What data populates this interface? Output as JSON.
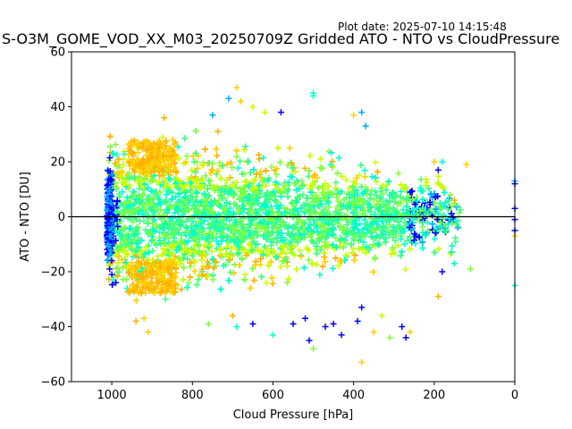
{
  "header": {
    "plot_date": "Plot date: 2025-07-10 14:15:48",
    "title": "S-O3M_GOME_VOD_XX_M03_20250709Z Gridded ATO - NTO vs CloudPressure"
  },
  "chart_data": {
    "type": "scatter",
    "marker": "+",
    "xlabel": "Cloud Pressure [hPa]",
    "ylabel": "ATO - NTO [DU]",
    "xlim": [
      1100,
      0
    ],
    "ylim": [
      -60,
      60
    ],
    "x_ticks": [
      1000,
      800,
      600,
      400,
      200,
      0
    ],
    "x_tick_labels": [
      "1000",
      "800",
      "600",
      "400",
      "200",
      "0"
    ],
    "y_ticks": [
      -60,
      -40,
      -20,
      0,
      20,
      40,
      60
    ],
    "y_tick_labels": [
      "−60",
      "−40",
      "−20",
      "0",
      "20",
      "40",
      "60"
    ],
    "reference_line_y": 0,
    "grid": false,
    "density_band": {
      "x_range": [
        1010,
        130
      ],
      "center_spread_du": 18,
      "colors": [
        "#00ffcc",
        "#40ff80",
        "#80ff40",
        "#c8ff00",
        "#ffd000",
        "#ffb000",
        "#0000ff",
        "#00aaff"
      ]
    },
    "outliers": [
      {
        "x": 690,
        "y": 47,
        "color": "#ffd000"
      },
      {
        "x": 710,
        "y": 43,
        "color": "#00aaff"
      },
      {
        "x": 680,
        "y": 42,
        "color": "#ffd000"
      },
      {
        "x": 500,
        "y": 45,
        "color": "#00ffcc"
      },
      {
        "x": 500,
        "y": 44,
        "color": "#00ffcc"
      },
      {
        "x": 650,
        "y": 40,
        "color": "#c8ff00"
      },
      {
        "x": 620,
        "y": 38,
        "color": "#c8ff00"
      },
      {
        "x": 580,
        "y": 38,
        "color": "#0000ff"
      },
      {
        "x": 400,
        "y": 37,
        "color": "#ffd000"
      },
      {
        "x": 370,
        "y": 33,
        "color": "#00aaff"
      },
      {
        "x": 200,
        "y": 20,
        "color": "#ffd000"
      },
      {
        "x": 190,
        "y": 17,
        "color": "#0000ff"
      },
      {
        "x": 180,
        "y": 20,
        "color": "#00ffcc"
      },
      {
        "x": 120,
        "y": 19,
        "color": "#ffd000"
      },
      {
        "x": 160,
        "y": 8,
        "color": "#80ff40"
      },
      {
        "x": 150,
        "y": 6,
        "color": "#ffb000"
      },
      {
        "x": 0,
        "y": 13,
        "color": "#00aaff"
      },
      {
        "x": 0,
        "y": 12,
        "color": "#0000ff"
      },
      {
        "x": 0,
        "y": 3,
        "color": "#0000ff"
      },
      {
        "x": 0,
        "y": -1,
        "color": "#0000ff"
      },
      {
        "x": 0,
        "y": -5,
        "color": "#0000ff"
      },
      {
        "x": 0,
        "y": -7,
        "color": "#ffd000"
      },
      {
        "x": 0,
        "y": -25,
        "color": "#00ffcc"
      },
      {
        "x": 150,
        "y": -17,
        "color": "#00ffcc"
      },
      {
        "x": 110,
        "y": -19,
        "color": "#80ff40"
      },
      {
        "x": 190,
        "y": -29,
        "color": "#ffb000"
      },
      {
        "x": 180,
        "y": -20,
        "color": "#0000ff"
      },
      {
        "x": 520,
        "y": -37,
        "color": "#0000ff"
      },
      {
        "x": 510,
        "y": -45,
        "color": "#0000ff"
      },
      {
        "x": 550,
        "y": -39,
        "color": "#0000ff"
      },
      {
        "x": 470,
        "y": -40,
        "color": "#0000ff"
      },
      {
        "x": 450,
        "y": -39,
        "color": "#0000ff"
      },
      {
        "x": 430,
        "y": -43,
        "color": "#0000ff"
      },
      {
        "x": 500,
        "y": -48,
        "color": "#80ff40"
      },
      {
        "x": 380,
        "y": -53,
        "color": "#ffd000"
      },
      {
        "x": 390,
        "y": -38,
        "color": "#0000ff"
      },
      {
        "x": 380,
        "y": -33,
        "color": "#0000ff"
      },
      {
        "x": 350,
        "y": -42,
        "color": "#ffd000"
      },
      {
        "x": 330,
        "y": -36,
        "color": "#c8ff00"
      },
      {
        "x": 310,
        "y": -44,
        "color": "#80ff40"
      },
      {
        "x": 280,
        "y": -40,
        "color": "#0000ff"
      },
      {
        "x": 260,
        "y": -42,
        "color": "#ffd000"
      },
      {
        "x": 270,
        "y": -44,
        "color": "#0000ff"
      },
      {
        "x": 910,
        "y": -42,
        "color": "#ffd000"
      },
      {
        "x": 940,
        "y": -38,
        "color": "#ffb000"
      },
      {
        "x": 920,
        "y": -37,
        "color": "#ffd000"
      },
      {
        "x": 760,
        "y": -39,
        "color": "#80ff40"
      },
      {
        "x": 650,
        "y": -39,
        "color": "#0000ff"
      },
      {
        "x": 600,
        "y": -43,
        "color": "#00ffcc"
      },
      {
        "x": 700,
        "y": -36,
        "color": "#ffb000"
      },
      {
        "x": 690,
        "y": -40,
        "color": "#00ffcc"
      },
      {
        "x": 990,
        "y": -24,
        "color": "#0000ff"
      },
      {
        "x": 1000,
        "y": -21,
        "color": "#0000ff"
      },
      {
        "x": 870,
        "y": 36,
        "color": "#ffb000"
      },
      {
        "x": 750,
        "y": 37,
        "color": "#00aaff"
      },
      {
        "x": 380,
        "y": 38,
        "color": "#00aaff"
      }
    ]
  }
}
